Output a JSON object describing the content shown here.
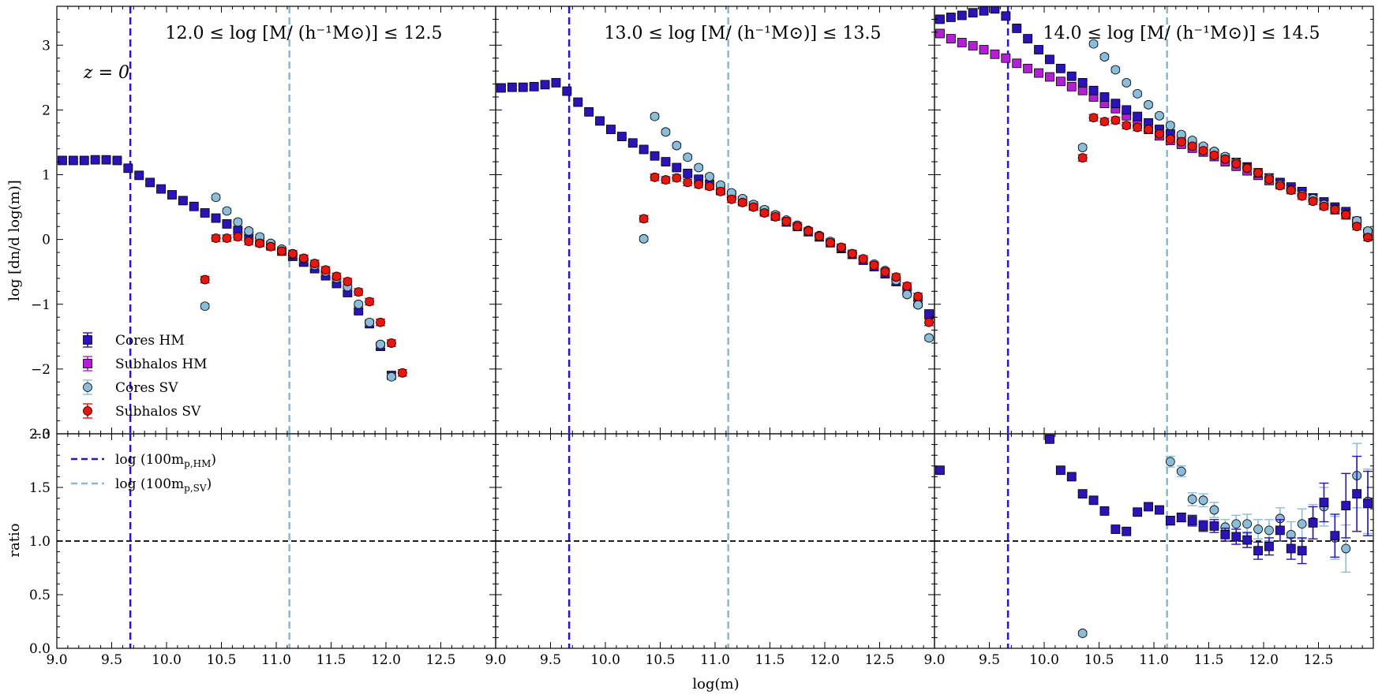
{
  "colors": {
    "cores_hm": "#2a14b8",
    "subhalos_hm": "#b41fd6",
    "cores_sv": "#8bbcd8",
    "subhalos_sv": "#e8160e",
    "vline_hm": "#2a14c8",
    "vline_sv": "#8ab8d8",
    "ratio_ref": "#000000"
  },
  "chart_data": {
    "type": "scatter",
    "xlabel": "log(m)",
    "ylabel_top": "log [dn/d log(m)]",
    "ylabel_bottom": "ratio",
    "xlim": [
      9.0,
      13.0
    ],
    "ylim_top": [
      -3.0,
      3.6
    ],
    "ylim_bottom": [
      0.0,
      2.0
    ],
    "x_ticks": [
      "9.0",
      "9.5",
      "10.0",
      "10.5",
      "11.0",
      "11.5",
      "12.0",
      "12.5"
    ],
    "y_ticks_top": [
      "−3",
      "−2",
      "−1",
      "0",
      "1",
      "2",
      "3"
    ],
    "y_ticks_bottom": [
      "0.0",
      "0.5",
      "1.0",
      "1.5",
      "2.0"
    ],
    "redshift_label": "z = 0",
    "reference_lines": {
      "hm_x": 9.67,
      "sv_x": 11.12,
      "ratio_y": 1.0,
      "hm_label": "log (100m",
      "hm_sub": "p,HM",
      "sv_label": "log (100m",
      "sv_sub": "p,SV",
      "close": ")"
    },
    "legend": {
      "cores_hm": "Cores HM",
      "subhalos_hm": "Subhalos HM",
      "cores_sv": "Cores SV",
      "subhalos_sv": "Subhalos SV"
    },
    "panels": [
      {
        "title": "12.0 ≤ log [M/ (h⁻¹M⊙)] ≤ 12.5",
        "cores_hm": {
          "x": [
            9.05,
            9.15,
            9.25,
            9.35,
            9.45,
            9.55,
            9.65,
            9.75,
            9.85,
            9.95,
            10.05,
            10.15,
            10.25,
            10.35,
            10.45,
            10.55,
            10.65,
            10.75,
            10.85,
            10.95,
            11.05,
            11.15,
            11.25,
            11.35,
            11.45,
            11.55,
            11.65,
            11.75,
            11.85,
            11.95,
            12.05
          ],
          "y": [
            1.22,
            1.22,
            1.22,
            1.23,
            1.23,
            1.22,
            1.1,
            0.99,
            0.88,
            0.78,
            0.69,
            0.6,
            0.51,
            0.41,
            0.33,
            0.24,
            0.14,
            0.05,
            -0.03,
            -0.1,
            -0.18,
            -0.26,
            -0.35,
            -0.45,
            -0.56,
            -0.68,
            -0.82,
            -1.1,
            -1.3,
            -1.65,
            -2.1
          ],
          "yerr": 0.03
        },
        "subhalos_hm": {
          "x": [],
          "y": [],
          "yerr": 0.03
        },
        "cores_sv": {
          "x": [
            10.35,
            10.45,
            10.55,
            10.65,
            10.75,
            10.85,
            10.95,
            11.05,
            11.15,
            11.25,
            11.35,
            11.45,
            11.55,
            11.65,
            11.75,
            11.85,
            11.95,
            12.05
          ],
          "y": [
            -1.03,
            0.65,
            0.44,
            0.27,
            0.13,
            0.04,
            -0.06,
            -0.15,
            -0.23,
            -0.3,
            -0.4,
            -0.5,
            -0.6,
            -0.73,
            -1.0,
            -1.28,
            -1.62,
            -2.12
          ],
          "yerr": 0.04
        },
        "subhalos_sv": {
          "x": [
            10.35,
            10.45,
            10.55,
            10.65,
            10.75,
            10.85,
            10.95,
            11.05,
            11.15,
            11.25,
            11.35,
            11.45,
            11.55,
            11.65,
            11.75,
            11.85,
            11.95,
            12.05,
            12.15
          ],
          "y": [
            -0.62,
            0.02,
            0.02,
            0.04,
            -0.03,
            -0.06,
            -0.11,
            -0.18,
            -0.22,
            -0.29,
            -0.37,
            -0.47,
            -0.57,
            -0.65,
            -0.81,
            -0.96,
            -1.28,
            -1.6,
            -2.06
          ],
          "yerr": 0.05
        },
        "ratio_cores": {
          "x": [],
          "y": [],
          "yerr": []
        },
        "ratio_sv": {
          "x": [],
          "y": [],
          "yerr": []
        }
      },
      {
        "title": "13.0 ≤ log [M/ (h⁻¹M⊙)] ≤ 13.5",
        "cores_hm": {
          "x": [
            9.05,
            9.15,
            9.25,
            9.35,
            9.45,
            9.55,
            9.65,
            9.75,
            9.85,
            9.95,
            10.05,
            10.15,
            10.25,
            10.35,
            10.45,
            10.55,
            10.65,
            10.75,
            10.85,
            10.95,
            11.05,
            11.15,
            11.25,
            11.35,
            11.45,
            11.55,
            11.65,
            11.75,
            11.85,
            11.95,
            12.05,
            12.15,
            12.25,
            12.35,
            12.45,
            12.55,
            12.65,
            12.75,
            12.85,
            12.95
          ],
          "y": [
            2.34,
            2.35,
            2.35,
            2.36,
            2.39,
            2.42,
            2.29,
            2.12,
            1.97,
            1.83,
            1.7,
            1.59,
            1.49,
            1.39,
            1.29,
            1.2,
            1.11,
            1.02,
            0.93,
            0.85,
            0.76,
            0.68,
            0.6,
            0.52,
            0.44,
            0.36,
            0.27,
            0.2,
            0.12,
            0.04,
            -0.05,
            -0.14,
            -0.23,
            -0.32,
            -0.42,
            -0.53,
            -0.65,
            -0.8,
            -0.97,
            -1.15
          ],
          "yerr": 0.03
        },
        "subhalos_hm": {
          "x": [],
          "y": [],
          "yerr": 0.03
        },
        "cores_sv": {
          "x": [
            10.35,
            10.45,
            10.55,
            10.65,
            10.75,
            10.85,
            10.95,
            11.05,
            11.15,
            11.25,
            11.35,
            11.45,
            11.55,
            11.65,
            11.75,
            11.85,
            11.95,
            12.05,
            12.15,
            12.25,
            12.35,
            12.45,
            12.55,
            12.65,
            12.75,
            12.85,
            12.95
          ],
          "y": [
            0.01,
            1.9,
            1.66,
            1.45,
            1.27,
            1.11,
            0.97,
            0.84,
            0.72,
            0.63,
            0.54,
            0.46,
            0.38,
            0.3,
            0.22,
            0.14,
            0.06,
            -0.03,
            -0.13,
            -0.22,
            -0.3,
            -0.38,
            -0.48,
            -0.63,
            -0.85,
            -1.01,
            -1.52
          ],
          "yerr": 0.04
        },
        "subhalos_sv": {
          "x": [
            10.35,
            10.45,
            10.55,
            10.65,
            10.75,
            10.85,
            10.95,
            11.05,
            11.15,
            11.25,
            11.35,
            11.45,
            11.55,
            11.65,
            11.75,
            11.85,
            11.95,
            12.05,
            12.15,
            12.25,
            12.35,
            12.45,
            12.55,
            12.65,
            12.75,
            12.85,
            12.95
          ],
          "y": [
            0.32,
            0.96,
            0.92,
            0.95,
            0.88,
            0.85,
            0.82,
            0.74,
            0.62,
            0.57,
            0.5,
            0.41,
            0.35,
            0.28,
            0.2,
            0.13,
            0.05,
            -0.05,
            -0.12,
            -0.22,
            -0.3,
            -0.4,
            -0.5,
            -0.58,
            -0.72,
            -0.88,
            -1.28
          ],
          "yerr": 0.05
        },
        "ratio_cores": {
          "x": [],
          "y": [],
          "yerr": []
        },
        "ratio_sv": {
          "x": [],
          "y": [],
          "yerr": []
        }
      },
      {
        "title": "14.0 ≤ log [M/ (h⁻¹M⊙)] ≤ 14.5",
        "cores_hm": {
          "x": [
            9.05,
            9.15,
            9.25,
            9.35,
            9.45,
            9.55,
            9.65,
            9.75,
            9.85,
            9.95,
            10.05,
            10.15,
            10.25,
            10.35,
            10.45,
            10.55,
            10.65,
            10.75,
            10.85,
            10.95,
            11.05,
            11.15,
            11.25,
            11.35,
            11.45,
            11.55,
            11.65,
            11.75,
            11.85,
            11.95,
            12.05,
            12.15,
            12.25,
            12.35,
            12.45,
            12.55,
            12.65,
            12.75,
            12.85,
            12.95
          ],
          "y": [
            3.4,
            3.43,
            3.46,
            3.5,
            3.53,
            3.56,
            3.45,
            3.26,
            3.1,
            2.93,
            2.78,
            2.64,
            2.52,
            2.42,
            2.3,
            2.2,
            2.1,
            2.0,
            1.9,
            1.8,
            1.7,
            1.63,
            1.55,
            1.47,
            1.41,
            1.33,
            1.26,
            1.19,
            1.12,
            1.03,
            0.95,
            0.88,
            0.81,
            0.74,
            0.64,
            0.58,
            0.5,
            0.43,
            0.28,
            0.11
          ],
          "yerr": 0.03
        },
        "subhalos_hm": {
          "x": [
            9.05,
            9.15,
            9.25,
            9.35,
            9.45,
            9.55,
            9.65,
            9.75,
            9.85,
            9.95,
            10.05,
            10.15,
            10.25,
            10.35,
            10.45,
            10.55,
            10.65,
            10.75,
            10.85,
            10.95,
            11.05,
            11.15,
            11.25,
            11.35,
            11.45,
            11.55,
            11.65,
            11.75,
            11.85,
            11.95,
            12.05,
            12.15,
            12.25,
            12.35,
            12.45,
            12.55,
            12.65,
            12.75,
            12.85,
            12.95
          ],
          "y": [
            3.18,
            3.1,
            3.04,
            2.99,
            2.93,
            2.86,
            2.8,
            2.72,
            2.64,
            2.57,
            2.51,
            2.44,
            2.36,
            2.3,
            2.2,
            2.1,
            2.02,
            1.91,
            1.79,
            1.7,
            1.6,
            1.53,
            1.47,
            1.41,
            1.35,
            1.28,
            1.2,
            1.13,
            1.06,
            0.99,
            0.91,
            0.85,
            0.77,
            0.71,
            0.64,
            0.54,
            0.46,
            0.38,
            0.25,
            0.1
          ],
          "yerr": 0.03
        },
        "cores_sv": {
          "x": [
            10.35,
            10.45,
            10.55,
            10.65,
            10.75,
            10.85,
            10.95,
            11.05,
            11.15,
            11.25,
            11.35,
            11.45,
            11.55,
            11.65,
            11.75,
            11.85,
            11.95,
            12.05,
            12.15,
            12.25,
            12.35,
            12.45,
            12.55,
            12.65,
            12.75,
            12.85,
            12.95
          ],
          "y": [
            1.42,
            3.02,
            2.82,
            2.62,
            2.42,
            2.25,
            2.08,
            1.91,
            1.76,
            1.62,
            1.53,
            1.44,
            1.36,
            1.28,
            1.19,
            1.11,
            1.03,
            0.95,
            0.85,
            0.77,
            0.69,
            0.63,
            0.54,
            0.47,
            0.39,
            0.29,
            0.13
          ],
          "yerr": 0.04
        },
        "subhalos_sv": {
          "x": [
            10.35,
            10.45,
            10.55,
            10.65,
            10.75,
            10.85,
            10.95,
            11.05,
            11.15,
            11.25,
            11.35,
            11.45,
            11.55,
            11.65,
            11.75,
            11.85,
            11.95,
            12.05,
            12.15,
            12.25,
            12.35,
            12.45,
            12.55,
            12.65,
            12.75,
            12.85,
            12.95
          ],
          "y": [
            1.26,
            1.88,
            1.82,
            1.84,
            1.76,
            1.73,
            1.7,
            1.63,
            1.55,
            1.51,
            1.44,
            1.37,
            1.3,
            1.24,
            1.17,
            1.1,
            1.03,
            0.93,
            0.83,
            0.76,
            0.67,
            0.59,
            0.51,
            0.46,
            0.38,
            0.2,
            0.03
          ],
          "yerr": 0.05
        },
        "ratio_cores": {
          "x": [
            9.05,
            10.05,
            10.15,
            10.25,
            10.35,
            10.45,
            10.55,
            10.65,
            10.75,
            10.85,
            10.95,
            11.05,
            11.15,
            11.25,
            11.35,
            11.45,
            11.55,
            11.65,
            11.75,
            11.85,
            11.95,
            12.05,
            12.15,
            12.25,
            12.35,
            12.45,
            12.55,
            12.65,
            12.75,
            12.85,
            12.95
          ],
          "y": [
            1.66,
            1.95,
            1.66,
            1.6,
            1.44,
            1.38,
            1.28,
            1.11,
            1.09,
            1.27,
            1.32,
            1.29,
            1.19,
            1.22,
            1.19,
            1.14,
            1.14,
            1.06,
            1.04,
            1.01,
            0.91,
            0.95,
            1.1,
            0.93,
            0.91,
            1.17,
            1.36,
            1.05,
            1.33,
            1.44,
            1.35
          ],
          "yerr": [
            0.02,
            0.02,
            0.02,
            0.02,
            0.02,
            0.02,
            0.02,
            0.02,
            0.02,
            0.02,
            0.03,
            0.03,
            0.04,
            0.04,
            0.05,
            0.05,
            0.06,
            0.06,
            0.07,
            0.07,
            0.08,
            0.08,
            0.1,
            0.1,
            0.12,
            0.15,
            0.18,
            0.2,
            0.3,
            0.35,
            0.3
          ]
        },
        "ratio_sv": {
          "x": [
            10.35,
            11.15,
            11.25,
            11.35,
            11.45,
            11.55,
            11.65,
            11.75,
            11.85,
            11.95,
            12.05,
            12.15,
            12.25,
            12.35,
            12.45,
            12.55,
            12.65,
            12.75,
            12.85,
            12.95
          ],
          "y": [
            0.14,
            1.74,
            1.65,
            1.39,
            1.38,
            1.29,
            1.13,
            1.16,
            1.16,
            1.11,
            1.1,
            1.21,
            1.06,
            1.16,
            1.18,
            1.32,
            1.03,
            0.93,
            1.61,
            1.37
          ],
          "yerr": [
            0.02,
            0.05,
            0.05,
            0.06,
            0.06,
            0.07,
            0.07,
            0.08,
            0.09,
            0.09,
            0.1,
            0.1,
            0.12,
            0.14,
            0.16,
            0.18,
            0.2,
            0.22,
            0.3,
            0.3
          ]
        }
      }
    ]
  }
}
